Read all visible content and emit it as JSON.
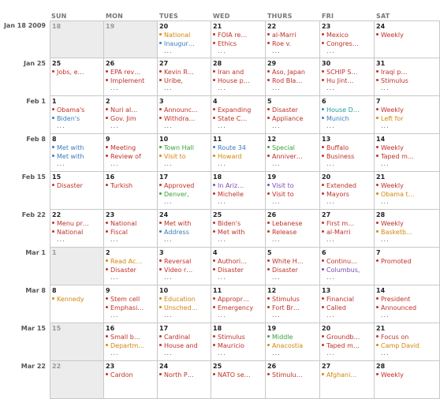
{
  "colors": {
    "red": "#c0312a",
    "blue": "#3a7cbf",
    "orange": "#d4860b",
    "green": "#3aa238",
    "teal": "#1f9aa0",
    "purple": "#7a4bb0",
    "gray": "#999999"
  },
  "day_headers": [
    "SUN",
    "MON",
    "TUES",
    "WED",
    "THURS",
    "FRI",
    "SAT"
  ],
  "weeks": [
    {
      "label": "Jan 18 2009",
      "days": [
        {
          "num": "18",
          "other": true,
          "events": [],
          "more": ""
        },
        {
          "num": "19",
          "other": true,
          "events": [],
          "more": ""
        },
        {
          "num": "20",
          "events": [
            {
              "text": "National",
              "color": "orange"
            },
            {
              "text": "Inaugur…",
              "color": "blue"
            }
          ],
          "more": "..."
        },
        {
          "num": "21",
          "events": [
            {
              "text": "FOIA re…",
              "color": "red"
            },
            {
              "text": "Ethics",
              "color": "red"
            }
          ],
          "more": "..."
        },
        {
          "num": "22",
          "events": [
            {
              "text": "al-Marri",
              "color": "red"
            },
            {
              "text": "Roe v.",
              "color": "red"
            }
          ],
          "more": "..."
        },
        {
          "num": "23",
          "events": [
            {
              "text": "Mexico",
              "color": "red"
            },
            {
              "text": "Congres…",
              "color": "red"
            }
          ],
          "more": "..."
        },
        {
          "num": "24",
          "events": [
            {
              "text": "Weekly",
              "color": "red"
            }
          ],
          "more": ""
        }
      ]
    },
    {
      "label": "Jan 25",
      "days": [
        {
          "num": "25",
          "events": [
            {
              "text": "Jobs, e…",
              "color": "red"
            }
          ],
          "more": ""
        },
        {
          "num": "26",
          "events": [
            {
              "text": "EPA rev…",
              "color": "red"
            },
            {
              "text": "Implement",
              "color": "red"
            }
          ],
          "more": "..."
        },
        {
          "num": "27",
          "events": [
            {
              "text": "Kevin R…",
              "color": "red"
            },
            {
              "text": "Uribe,",
              "color": "red"
            }
          ],
          "more": "..."
        },
        {
          "num": "28",
          "events": [
            {
              "text": "Iran and",
              "color": "red"
            },
            {
              "text": "House p…",
              "color": "red"
            }
          ],
          "more": "..."
        },
        {
          "num": "29",
          "events": [
            {
              "text": "Aso, Japan",
              "color": "red"
            },
            {
              "text": "Rod Bla…",
              "color": "red"
            }
          ],
          "more": "..."
        },
        {
          "num": "30",
          "events": [
            {
              "text": "SCHIP S…",
              "color": "red"
            },
            {
              "text": "Hu Jint…",
              "color": "red"
            }
          ],
          "more": "..."
        },
        {
          "num": "31",
          "events": [
            {
              "text": "Iraqi p…",
              "color": "red"
            },
            {
              "text": "Stimulus",
              "color": "red"
            }
          ],
          "more": "..."
        }
      ]
    },
    {
      "label": "Feb 1",
      "days": [
        {
          "num": "1",
          "events": [
            {
              "text": "Obama's",
              "color": "red"
            },
            {
              "text": "Biden's",
              "color": "blue"
            }
          ],
          "more": "..."
        },
        {
          "num": "2",
          "events": [
            {
              "text": "Nuri al…",
              "color": "red"
            },
            {
              "text": "Gov. Jim",
              "color": "red"
            }
          ],
          "more": "..."
        },
        {
          "num": "3",
          "events": [
            {
              "text": "Announc…",
              "color": "red"
            },
            {
              "text": "Withdra…",
              "color": "red"
            }
          ],
          "more": "..."
        },
        {
          "num": "4",
          "events": [
            {
              "text": "Expanding",
              "color": "red"
            },
            {
              "text": "State C…",
              "color": "red"
            }
          ],
          "more": "..."
        },
        {
          "num": "5",
          "events": [
            {
              "text": "Disaster",
              "color": "red"
            },
            {
              "text": "Appliance",
              "color": "red"
            }
          ],
          "more": "..."
        },
        {
          "num": "6",
          "events": [
            {
              "text": "House D…",
              "color": "teal"
            },
            {
              "text": "Munich",
              "color": "blue"
            }
          ],
          "more": "..."
        },
        {
          "num": "7",
          "events": [
            {
              "text": "Weekly",
              "color": "red"
            },
            {
              "text": "Left for",
              "color": "orange"
            }
          ],
          "more": "..."
        }
      ]
    },
    {
      "label": "Feb 8",
      "days": [
        {
          "num": "8",
          "events": [
            {
              "text": "Met with",
              "color": "blue"
            },
            {
              "text": "Met with",
              "color": "blue"
            }
          ],
          "more": "..."
        },
        {
          "num": "9",
          "events": [
            {
              "text": "Meeting",
              "color": "red"
            },
            {
              "text": "Review of",
              "color": "red"
            }
          ],
          "more": "..."
        },
        {
          "num": "10",
          "events": [
            {
              "text": "Town Hall",
              "color": "green"
            },
            {
              "text": "Visit to",
              "color": "orange"
            }
          ],
          "more": "..."
        },
        {
          "num": "11",
          "events": [
            {
              "text": "Route 34",
              "color": "blue"
            },
            {
              "text": "Howard",
              "color": "orange"
            }
          ],
          "more": "..."
        },
        {
          "num": "12",
          "events": [
            {
              "text": "Special",
              "color": "green"
            },
            {
              "text": "Anniver…",
              "color": "red"
            }
          ],
          "more": "..."
        },
        {
          "num": "13",
          "events": [
            {
              "text": "Buffalo",
              "color": "red"
            },
            {
              "text": "Business",
              "color": "red"
            }
          ],
          "more": "..."
        },
        {
          "num": "14",
          "events": [
            {
              "text": "Weekly",
              "color": "red"
            },
            {
              "text": "Taped m…",
              "color": "red"
            }
          ],
          "more": "..."
        }
      ]
    },
    {
      "label": "Feb 15",
      "days": [
        {
          "num": "15",
          "events": [
            {
              "text": "Disaster",
              "color": "red"
            }
          ],
          "more": ""
        },
        {
          "num": "16",
          "events": [
            {
              "text": "Turkish",
              "color": "red"
            }
          ],
          "more": ""
        },
        {
          "num": "17",
          "events": [
            {
              "text": "Approved",
              "color": "red"
            },
            {
              "text": "Denver,",
              "color": "green"
            }
          ],
          "more": "..."
        },
        {
          "num": "18",
          "events": [
            {
              "text": "In Ariz…",
              "color": "purple"
            },
            {
              "text": "Michelle",
              "color": "red"
            }
          ],
          "more": "..."
        },
        {
          "num": "19",
          "events": [
            {
              "text": "Visit to",
              "color": "purple"
            },
            {
              "text": "Visit to",
              "color": "red"
            }
          ],
          "more": "..."
        },
        {
          "num": "20",
          "events": [
            {
              "text": "Extended",
              "color": "red"
            },
            {
              "text": "Mayors",
              "color": "red"
            }
          ],
          "more": "..."
        },
        {
          "num": "21",
          "events": [
            {
              "text": "Weekly",
              "color": "red"
            },
            {
              "text": "Obama t…",
              "color": "orange"
            }
          ],
          "more": "..."
        }
      ]
    },
    {
      "label": "Feb 22",
      "days": [
        {
          "num": "22",
          "events": [
            {
              "text": "Menu pr…",
              "color": "red"
            },
            {
              "text": "National",
              "color": "red"
            }
          ],
          "more": "..."
        },
        {
          "num": "23",
          "events": [
            {
              "text": "National",
              "color": "red"
            },
            {
              "text": "Fiscal",
              "color": "red"
            }
          ],
          "more": "..."
        },
        {
          "num": "24",
          "events": [
            {
              "text": "Met with",
              "color": "red"
            },
            {
              "text": "Address",
              "color": "blue"
            }
          ],
          "more": "..."
        },
        {
          "num": "25",
          "events": [
            {
              "text": "Biden's",
              "color": "red"
            },
            {
              "text": "Met with",
              "color": "red"
            }
          ],
          "more": "..."
        },
        {
          "num": "26",
          "events": [
            {
              "text": "Lebanese",
              "color": "red"
            },
            {
              "text": "Release",
              "color": "red"
            }
          ],
          "more": "..."
        },
        {
          "num": "27",
          "events": [
            {
              "text": "First m…",
              "color": "red"
            },
            {
              "text": "al-Marri",
              "color": "red"
            }
          ],
          "more": "..."
        },
        {
          "num": "28",
          "events": [
            {
              "text": "Weekly",
              "color": "red"
            },
            {
              "text": "Basketb…",
              "color": "orange"
            }
          ],
          "more": "..."
        }
      ]
    },
    {
      "label": "Mar 1",
      "days": [
        {
          "num": "1",
          "other": true,
          "events": [],
          "more": ""
        },
        {
          "num": "2",
          "events": [
            {
              "text": "Read Ac…",
              "color": "orange"
            },
            {
              "text": "Disaster",
              "color": "red"
            }
          ],
          "more": "..."
        },
        {
          "num": "3",
          "events": [
            {
              "text": "Reversal",
              "color": "red"
            },
            {
              "text": "Video r…",
              "color": "red"
            }
          ],
          "more": "..."
        },
        {
          "num": "4",
          "events": [
            {
              "text": "Authori…",
              "color": "red"
            },
            {
              "text": "Disaster",
              "color": "red"
            }
          ],
          "more": "..."
        },
        {
          "num": "5",
          "events": [
            {
              "text": "White H…",
              "color": "red"
            },
            {
              "text": "Disaster",
              "color": "red"
            }
          ],
          "more": "..."
        },
        {
          "num": "6",
          "events": [
            {
              "text": "Continu…",
              "color": "red"
            },
            {
              "text": "Columbus,",
              "color": "purple"
            }
          ],
          "more": "..."
        },
        {
          "num": "7",
          "events": [
            {
              "text": "Promoted",
              "color": "red"
            }
          ],
          "more": ""
        }
      ]
    },
    {
      "label": "Mar 8",
      "days": [
        {
          "num": "8",
          "events": [
            {
              "text": "Kennedy",
              "color": "orange"
            }
          ],
          "more": ""
        },
        {
          "num": "9",
          "events": [
            {
              "text": "Stem cell",
              "color": "red"
            },
            {
              "text": "Emphasi…",
              "color": "red"
            }
          ],
          "more": "..."
        },
        {
          "num": "10",
          "events": [
            {
              "text": "Education",
              "color": "orange"
            },
            {
              "text": "Unsched…",
              "color": "orange"
            }
          ],
          "more": "..."
        },
        {
          "num": "11",
          "events": [
            {
              "text": "Appropr…",
              "color": "red"
            },
            {
              "text": "Emergency",
              "color": "red"
            }
          ],
          "more": "..."
        },
        {
          "num": "12",
          "events": [
            {
              "text": "Stimulus",
              "color": "red"
            },
            {
              "text": "Fort Br…",
              "color": "red"
            }
          ],
          "more": "..."
        },
        {
          "num": "13",
          "events": [
            {
              "text": "Financial",
              "color": "red"
            },
            {
              "text": "Called",
              "color": "red"
            }
          ],
          "more": "..."
        },
        {
          "num": "14",
          "events": [
            {
              "text": "President",
              "color": "red"
            },
            {
              "text": "Announced",
              "color": "red"
            }
          ],
          "more": "..."
        }
      ]
    },
    {
      "label": "Mar 15",
      "days": [
        {
          "num": "15",
          "other": true,
          "events": [],
          "more": ""
        },
        {
          "num": "16",
          "events": [
            {
              "text": "Small b…",
              "color": "red"
            },
            {
              "text": "Departm…",
              "color": "orange"
            }
          ],
          "more": "..."
        },
        {
          "num": "17",
          "events": [
            {
              "text": "Cardinal",
              "color": "red"
            },
            {
              "text": "House and",
              "color": "red"
            }
          ],
          "more": "..."
        },
        {
          "num": "18",
          "events": [
            {
              "text": "Stimulus",
              "color": "red"
            },
            {
              "text": "Mauricio",
              "color": "red"
            }
          ],
          "more": "..."
        },
        {
          "num": "19",
          "events": [
            {
              "text": "Middle",
              "color": "green"
            },
            {
              "text": "Anacostia",
              "color": "orange"
            }
          ],
          "more": "..."
        },
        {
          "num": "20",
          "events": [
            {
              "text": "Groundb…",
              "color": "red"
            },
            {
              "text": "Taped m…",
              "color": "red"
            }
          ],
          "more": "..."
        },
        {
          "num": "21",
          "events": [
            {
              "text": "Focus on",
              "color": "red"
            },
            {
              "text": "Camp David",
              "color": "orange"
            }
          ],
          "more": "..."
        }
      ]
    },
    {
      "label": "Mar 22",
      "days": [
        {
          "num": "22",
          "other": true,
          "events": [],
          "more": ""
        },
        {
          "num": "23",
          "events": [
            {
              "text": "Cardon",
              "color": "red"
            }
          ],
          "more": ""
        },
        {
          "num": "24",
          "events": [
            {
              "text": "North P…",
              "color": "red"
            }
          ],
          "more": ""
        },
        {
          "num": "25",
          "events": [
            {
              "text": "NATO se…",
              "color": "red"
            }
          ],
          "more": ""
        },
        {
          "num": "26",
          "events": [
            {
              "text": "Stimulu…",
              "color": "red"
            }
          ],
          "more": ""
        },
        {
          "num": "27",
          "events": [
            {
              "text": "Afghani…",
              "color": "orange"
            }
          ],
          "more": ""
        },
        {
          "num": "28",
          "events": [
            {
              "text": "Weekly",
              "color": "red"
            }
          ],
          "more": ""
        }
      ]
    }
  ]
}
